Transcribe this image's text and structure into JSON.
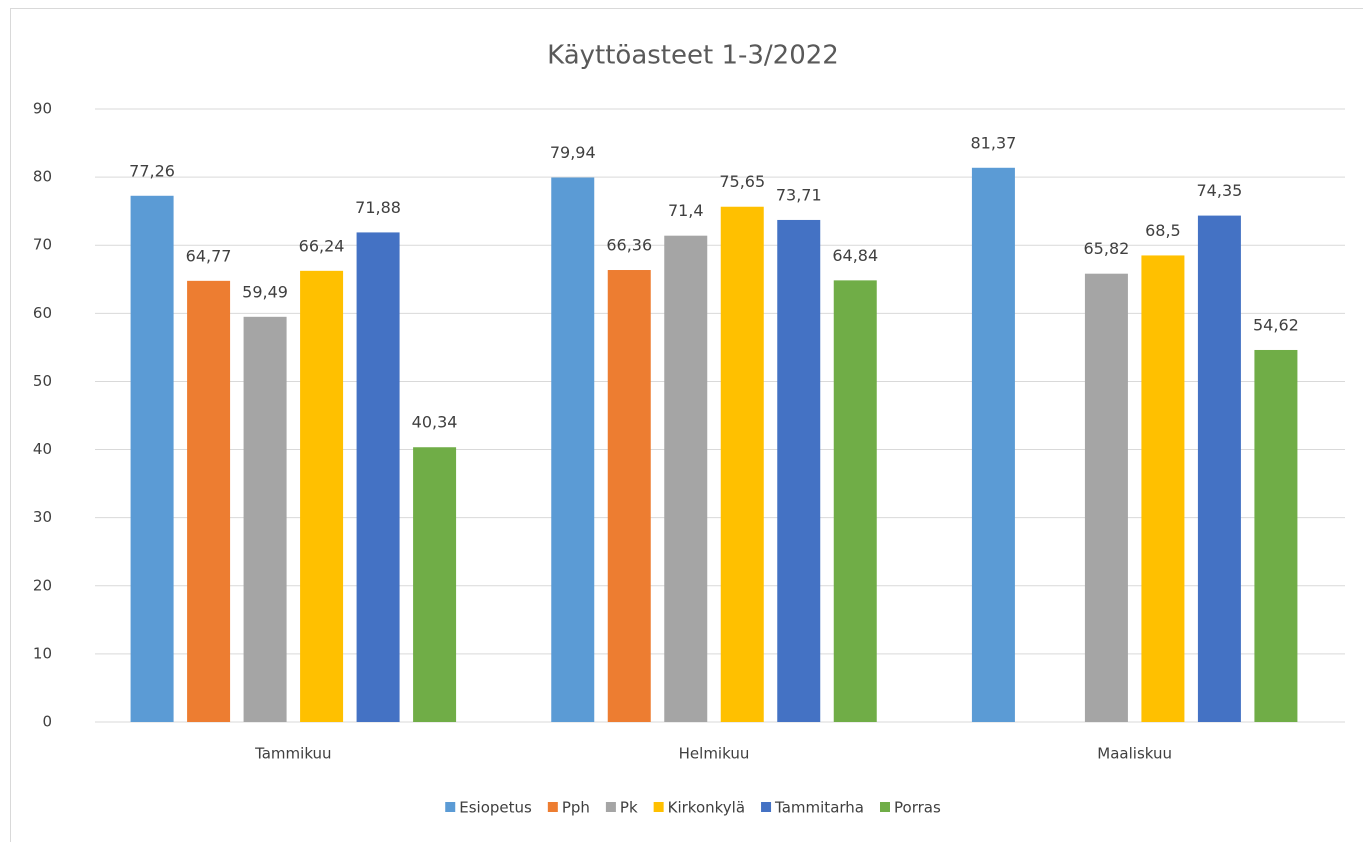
{
  "chart_data": {
    "type": "bar",
    "title": "Käyttöasteet 1-3/2022",
    "categories": [
      "Tammikuu",
      "Helmikuu",
      "Maaliskuu"
    ],
    "series": [
      {
        "name": "Esiopetus",
        "color": "#5b9bd5",
        "values": [
          77.26,
          79.94,
          81.37
        ],
        "value_labels": [
          "77,26",
          "79,94",
          "81,37"
        ]
      },
      {
        "name": "Pph",
        "color": "#ed7d31",
        "values": [
          64.77,
          66.36,
          null
        ],
        "value_labels": [
          "64,77",
          "66,36",
          null
        ]
      },
      {
        "name": "Pk",
        "color": "#a5a5a5",
        "values": [
          59.49,
          71.4,
          65.82
        ],
        "value_labels": [
          "59,49",
          "71,4",
          "65,82"
        ]
      },
      {
        "name": "Kirkonkylä",
        "color": "#ffc000",
        "values": [
          66.24,
          75.65,
          68.5
        ],
        "value_labels": [
          "66,24",
          "75,65",
          "68,5"
        ]
      },
      {
        "name": "Tammitarha",
        "color": "#4472c4",
        "values": [
          71.88,
          73.71,
          74.35
        ],
        "value_labels": [
          "71,88",
          "73,71",
          "74,35"
        ]
      },
      {
        "name": "Porras",
        "color": "#70ad47",
        "values": [
          40.34,
          64.84,
          54.62
        ],
        "value_labels": [
          "40,34",
          "64,84",
          "54,62"
        ]
      }
    ],
    "ylim": [
      0,
      90
    ],
    "yticks": [
      0,
      10,
      20,
      30,
      40,
      50,
      60,
      70,
      80,
      90
    ],
    "grid": true,
    "legend": "bottom"
  }
}
